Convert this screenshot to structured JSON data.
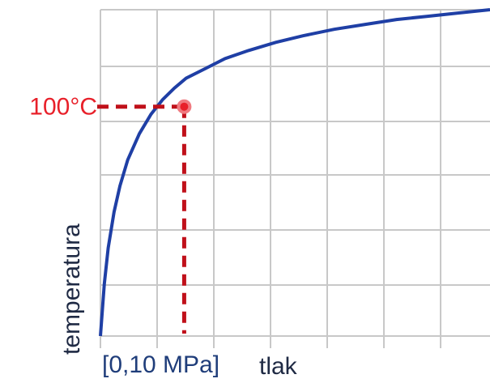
{
  "chart_data": {
    "type": "line",
    "xlabel": "tlak",
    "ylabel": "temperatura",
    "x_marker_label": "[0,10 MPa]",
    "y_marker_label": "100°C",
    "grid": true,
    "xlim": [
      0,
      1
    ],
    "ylim": [
      0,
      1
    ],
    "series": [
      {
        "x": [
          0.0,
          0.01,
          0.02,
          0.035,
          0.05,
          0.07,
          0.1,
          0.13,
          0.16,
          0.19,
          0.22,
          0.27,
          0.32,
          0.38,
          0.45,
          0.52,
          0.6,
          0.68,
          0.76,
          0.84,
          0.92,
          1.0
        ],
        "y": [
          0.0,
          0.16,
          0.27,
          0.38,
          0.46,
          0.54,
          0.62,
          0.68,
          0.725,
          0.76,
          0.79,
          0.82,
          0.85,
          0.875,
          0.9,
          0.92,
          0.94,
          0.955,
          0.97,
          0.98,
          0.99,
          1.0
        ],
        "color": "#1f3fa5"
      }
    ],
    "marker": {
      "x": 0.215,
      "y": 0.703,
      "color": "#e8202a"
    }
  }
}
